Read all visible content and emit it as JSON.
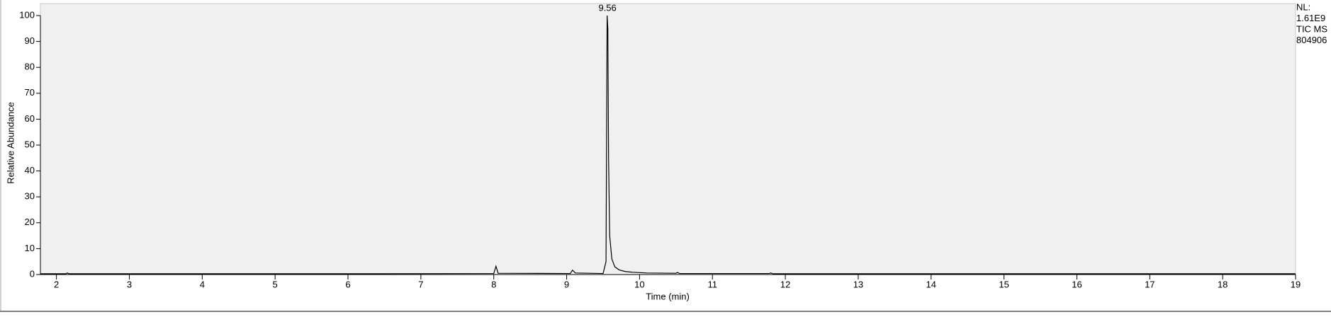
{
  "chart_data": {
    "type": "line",
    "x_label": "Time (min)",
    "y_label": "Relative Abundance",
    "xlim": [
      1.78,
      19.0
    ],
    "ylim": [
      0,
      100
    ],
    "xticks": [
      2,
      3,
      4,
      5,
      6,
      7,
      8,
      9,
      10,
      11,
      12,
      13,
      14,
      15,
      16,
      17,
      18,
      19
    ],
    "yticks": [
      0,
      10,
      20,
      30,
      40,
      50,
      60,
      70,
      80,
      90,
      100
    ],
    "series": [
      {
        "color": "#000000",
        "x": [
          1.78,
          2.13,
          2.15,
          2.17,
          6.3,
          8.0,
          8.03,
          8.06,
          9.05,
          9.08,
          9.12,
          9.5,
          9.54,
          9.555,
          9.565,
          9.575,
          9.59,
          9.62,
          9.66,
          9.72,
          9.8,
          9.9,
          10.1,
          10.5,
          10.52,
          10.55,
          11.78,
          11.8,
          11.83,
          19.0
        ],
        "values": [
          0.3,
          0.3,
          0.6,
          0.3,
          0.3,
          0.4,
          3.2,
          0.5,
          0.4,
          1.7,
          0.6,
          0.4,
          5,
          100,
          95,
          45,
          15,
          6,
          3,
          1.8,
          1.2,
          0.9,
          0.6,
          0.5,
          0.8,
          0.4,
          0.4,
          0.6,
          0.3,
          0.3
        ]
      }
    ],
    "annotations": [
      {
        "x": 9.56,
        "y": 100,
        "text": "9.56"
      }
    ],
    "info_lines": [
      "NL:",
      "1.61E9",
      "TIC MS",
      "804906"
    ]
  }
}
